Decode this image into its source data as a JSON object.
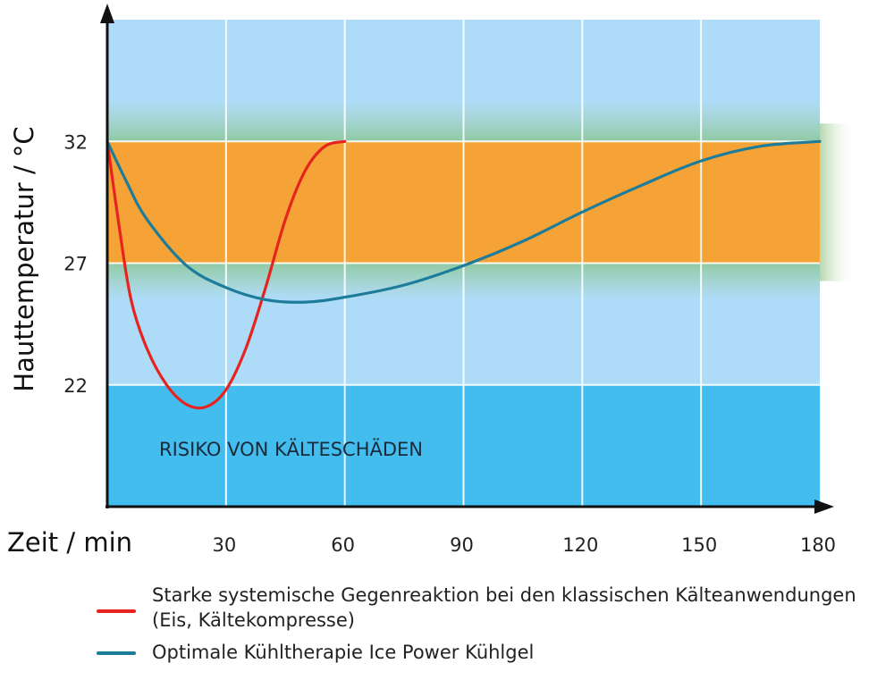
{
  "chart_data": {
    "type": "line",
    "xlabel": "Zeit / min",
    "ylabel": "Hauttemperatur / °C",
    "xlim": [
      0,
      180
    ],
    "ylim": [
      17,
      37
    ],
    "x_ticks": [
      "30",
      "60",
      "90",
      "120",
      "150",
      "180"
    ],
    "y_ticks": [
      "22",
      "27",
      "32"
    ],
    "zones": [
      {
        "from": 27,
        "to": 32,
        "color": "#f5a336",
        "label": ""
      },
      {
        "from": 17,
        "to": 22,
        "color": "#43bdee",
        "label": "RISIKO VON KÄLTESCHÄDEN"
      }
    ],
    "background_color": "#aedbf7",
    "grid": true,
    "series": [
      {
        "name": "Starke systemische Gegenreaktion bei den klassischen Kälteanwendungen (Eis, Kältekompresse)",
        "color": "#e52420",
        "x": [
          0,
          3,
          6,
          10,
          15,
          20,
          25,
          30,
          35,
          40,
          45,
          50,
          55,
          60
        ],
        "y": [
          32,
          28.5,
          25.5,
          23.5,
          22,
          21.2,
          21.1,
          21.8,
          23.5,
          26,
          28.8,
          30.8,
          31.8,
          32
        ]
      },
      {
        "name": "Optimale Kühltherapie Ice Power Kühlgel",
        "color": "#1d7c99",
        "x": [
          0,
          5,
          10,
          20,
          30,
          40,
          50,
          60,
          75,
          90,
          105,
          120,
          135,
          150,
          165,
          180
        ],
        "y": [
          32,
          30.3,
          28.8,
          26.9,
          26,
          25.5,
          25.4,
          25.6,
          26.1,
          26.9,
          27.9,
          29.1,
          30.2,
          31.2,
          31.8,
          32
        ]
      }
    ]
  }
}
